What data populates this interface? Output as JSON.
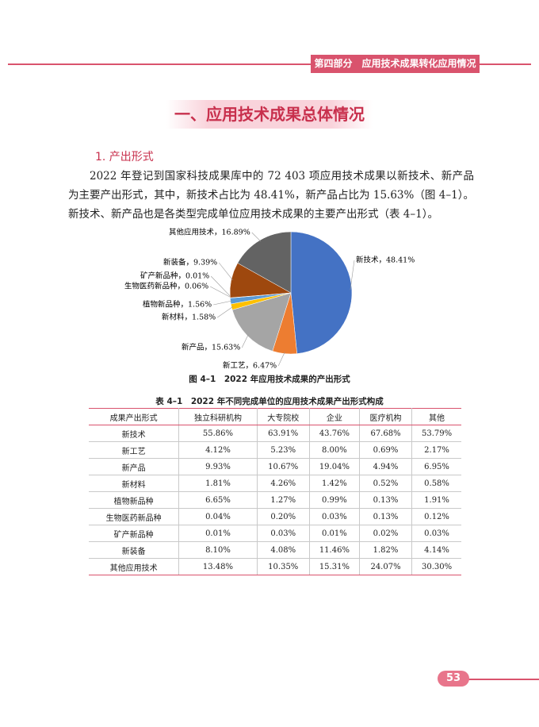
{
  "header": {
    "section_label": "第四部分　应用技术成果转化应用情况"
  },
  "section_title": "一、应用技术成果总体情况",
  "subsection": "1. 产出形式",
  "paragraph": "2022 年登记到国家科技成果库中的 72 403 项应用技术成果以新技术、新产品为主要产出形式，其中，新技术占比为 48.41%，新产品占比为 15.63%（图 4–1）。新技术、新产品也是各类型完成单位应用技术成果的主要产出形式（表 4–1）。",
  "chart_data": {
    "type": "pie",
    "caption": "图 4–1　2022 年应用技术成果的产出形式",
    "values": [
      48.41,
      6.47,
      15.63,
      1.58,
      1.56,
      0.06,
      0.01,
      9.39,
      16.89
    ],
    "value_labels": [
      "新技术，48.41%",
      "新工艺，6.47%",
      "新产品，15.63%",
      "新材料，1.58%",
      "植物新品种，1.56%",
      "生物医药新品种，0.06%",
      "矿产新品种，0.01%",
      "新装备，9.39%",
      "其他应用技术，16.89%"
    ],
    "colors": [
      "#4472c4",
      "#ed7d31",
      "#a5a5a5",
      "#ffc000",
      "#5b9bd5",
      "#70ad47",
      "#264478",
      "#9e480e",
      "#636363"
    ]
  },
  "table": {
    "title": "表 4–1　2022 年不同完成单位的应用技术成果产出形式构成",
    "header": [
      "成果产出形式",
      "独立科研机构",
      "大专院校",
      "企业",
      "医疗机构",
      "其他"
    ],
    "rows": [
      [
        "新技术",
        "55.86%",
        "63.91%",
        "43.76%",
        "67.68%",
        "53.79%"
      ],
      [
        "新工艺",
        "4.12%",
        "5.23%",
        "8.00%",
        "0.69%",
        "2.17%"
      ],
      [
        "新产品",
        "9.93%",
        "10.67%",
        "19.04%",
        "4.94%",
        "6.95%"
      ],
      [
        "新材料",
        "1.81%",
        "4.26%",
        "1.42%",
        "0.52%",
        "0.58%"
      ],
      [
        "植物新品种",
        "6.65%",
        "1.27%",
        "0.99%",
        "0.13%",
        "1.91%"
      ],
      [
        "生物医药新品种",
        "0.04%",
        "0.20%",
        "0.03%",
        "0.13%",
        "0.12%"
      ],
      [
        "矿产新品种",
        "0.01%",
        "0.03%",
        "0.01%",
        "0.02%",
        "0.03%"
      ],
      [
        "新装备",
        "8.10%",
        "4.08%",
        "11.46%",
        "1.82%",
        "4.14%"
      ],
      [
        "其他应用技术",
        "13.48%",
        "10.35%",
        "15.31%",
        "24.07%",
        "30.30%"
      ]
    ]
  },
  "page_number": "53"
}
